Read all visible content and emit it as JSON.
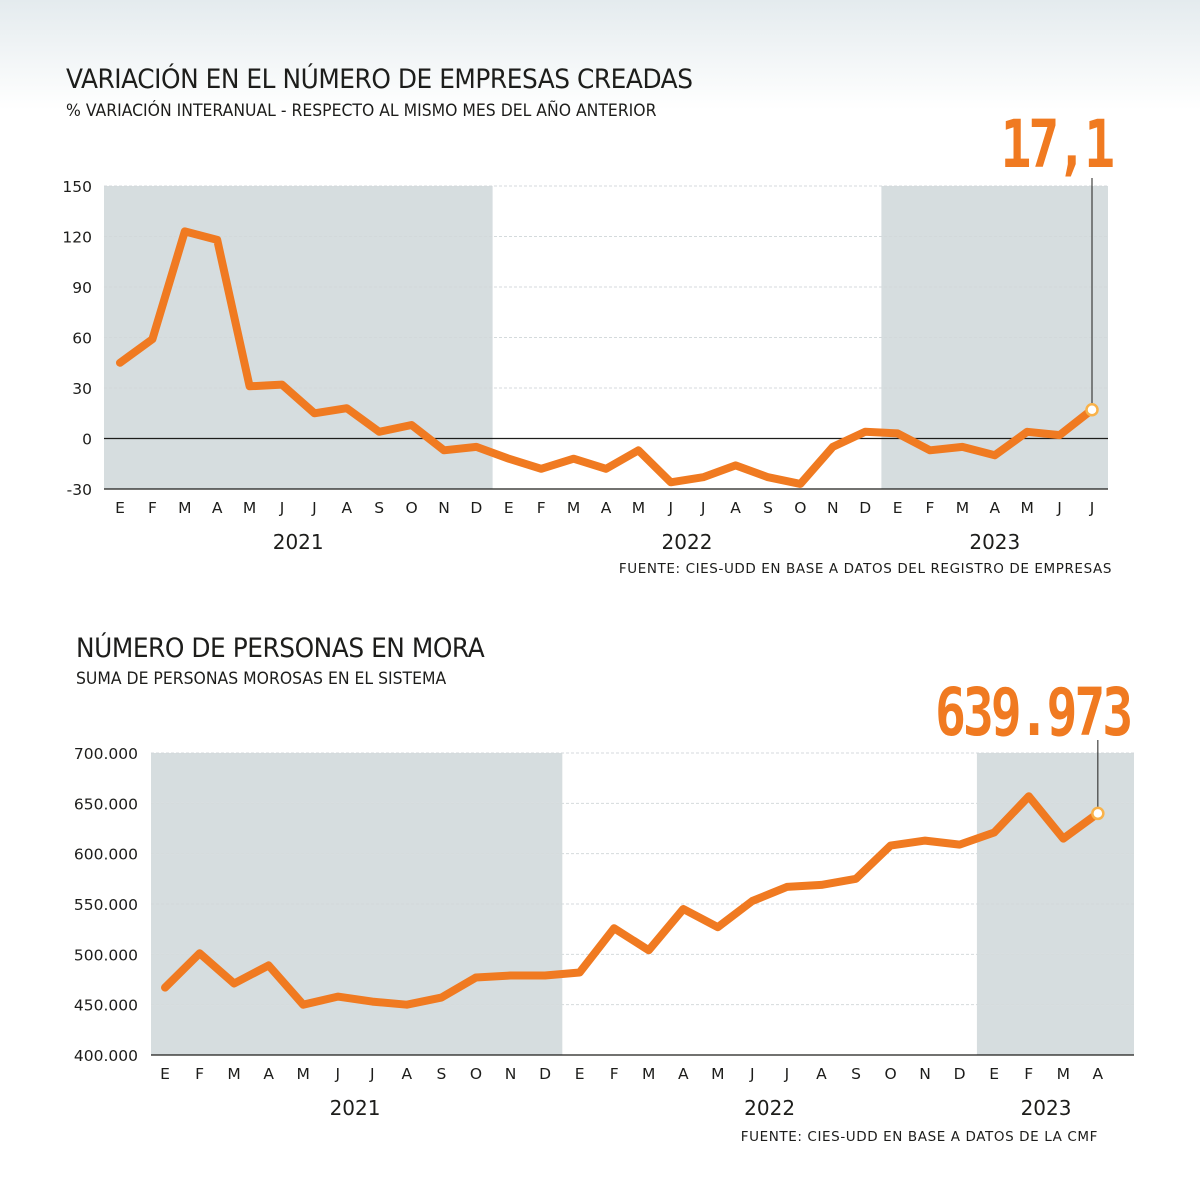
{
  "chart_data": [
    {
      "type": "line",
      "title": "VARIACIÓN EN EL NÚMERO DE EMPRESAS CREADAS",
      "subtitle": "% VARIACIÓN INTERANUAL - RESPECTO AL MISMO MES DEL AÑO ANTERIOR",
      "source": "FUENTE: CIES-UDD EN BASE A DATOS DEL REGISTRO DE EMPRESAS",
      "highlight_label": "17,1",
      "highlight_value": 17.1,
      "ylim": [
        -30,
        150
      ],
      "yticks": [
        {
          "value": 150,
          "label": "150"
        },
        {
          "value": 120,
          "label": "120"
        },
        {
          "value": 90,
          "label": "90"
        },
        {
          "value": 60,
          "label": "60"
        },
        {
          "value": 30,
          "label": "30"
        },
        {
          "value": 0,
          "label": "0"
        },
        {
          "value": -30,
          "label": "-30"
        }
      ],
      "months": [
        "E",
        "F",
        "M",
        "A",
        "M",
        "J",
        "J",
        "A",
        "S",
        "O",
        "N",
        "D",
        "E",
        "F",
        "M",
        "A",
        "M",
        "J",
        "J",
        "A",
        "S",
        "O",
        "N",
        "D",
        "E",
        "F",
        "M",
        "A",
        "M",
        "J",
        "J"
      ],
      "years": [
        {
          "label": "2021",
          "start": 0,
          "end": 11,
          "shaded": true
        },
        {
          "label": "2022",
          "start": 12,
          "end": 23,
          "shaded": false
        },
        {
          "label": "2023",
          "start": 24,
          "end": 30,
          "shaded": true
        }
      ],
      "values": [
        45,
        59,
        123,
        118,
        31,
        32,
        15,
        18,
        4,
        8,
        -7,
        -5,
        -12,
        -18,
        -12,
        -18,
        -7,
        -26,
        -23,
        -16,
        -23,
        -27,
        -5,
        4,
        3,
        -7,
        -5,
        -10,
        4,
        2,
        17.1
      ],
      "zero_line": true,
      "line_color": "#f07a21",
      "shade_color": "#d6dddf"
    },
    {
      "type": "line",
      "title": "NÚMERO DE PERSONAS EN MORA",
      "subtitle": "SUMA DE PERSONAS MOROSAS EN EL SISTEMA",
      "source": "FUENTE: CIES-UDD EN BASE A DATOS DE LA CMF",
      "highlight_label": "639.973",
      "highlight_value": 639973,
      "ylim": [
        400000,
        700000
      ],
      "yticks": [
        {
          "value": 700000,
          "label": "700.000"
        },
        {
          "value": 650000,
          "label": "650.000"
        },
        {
          "value": 600000,
          "label": "600.000"
        },
        {
          "value": 550000,
          "label": "550.000"
        },
        {
          "value": 500000,
          "label": "500.000"
        },
        {
          "value": 450000,
          "label": "450.000"
        },
        {
          "value": 400000,
          "label": "400.000"
        }
      ],
      "months": [
        "E",
        "F",
        "M",
        "A",
        "M",
        "J",
        "J",
        "A",
        "S",
        "O",
        "N",
        "D",
        "E",
        "F",
        "M",
        "A",
        "M",
        "J",
        "J",
        "A",
        "S",
        "O",
        "N",
        "D",
        "E",
        "F",
        "M",
        "A"
      ],
      "years": [
        {
          "label": "2021",
          "start": 0,
          "end": 11,
          "shaded": true
        },
        {
          "label": "2022",
          "start": 12,
          "end": 23,
          "shaded": false
        },
        {
          "label": "2023",
          "start": 24,
          "end": 27,
          "shaded": true
        }
      ],
      "values": [
        467000,
        501000,
        471000,
        489000,
        450000,
        458000,
        453000,
        450000,
        457000,
        477000,
        479000,
        479000,
        482000,
        526000,
        504000,
        545000,
        527000,
        553000,
        567000,
        569000,
        575000,
        608000,
        613000,
        609000,
        621000,
        657000,
        615000,
        639973
      ],
      "zero_line": false,
      "line_color": "#f07a21",
      "shade_color": "#d6dddf"
    }
  ]
}
